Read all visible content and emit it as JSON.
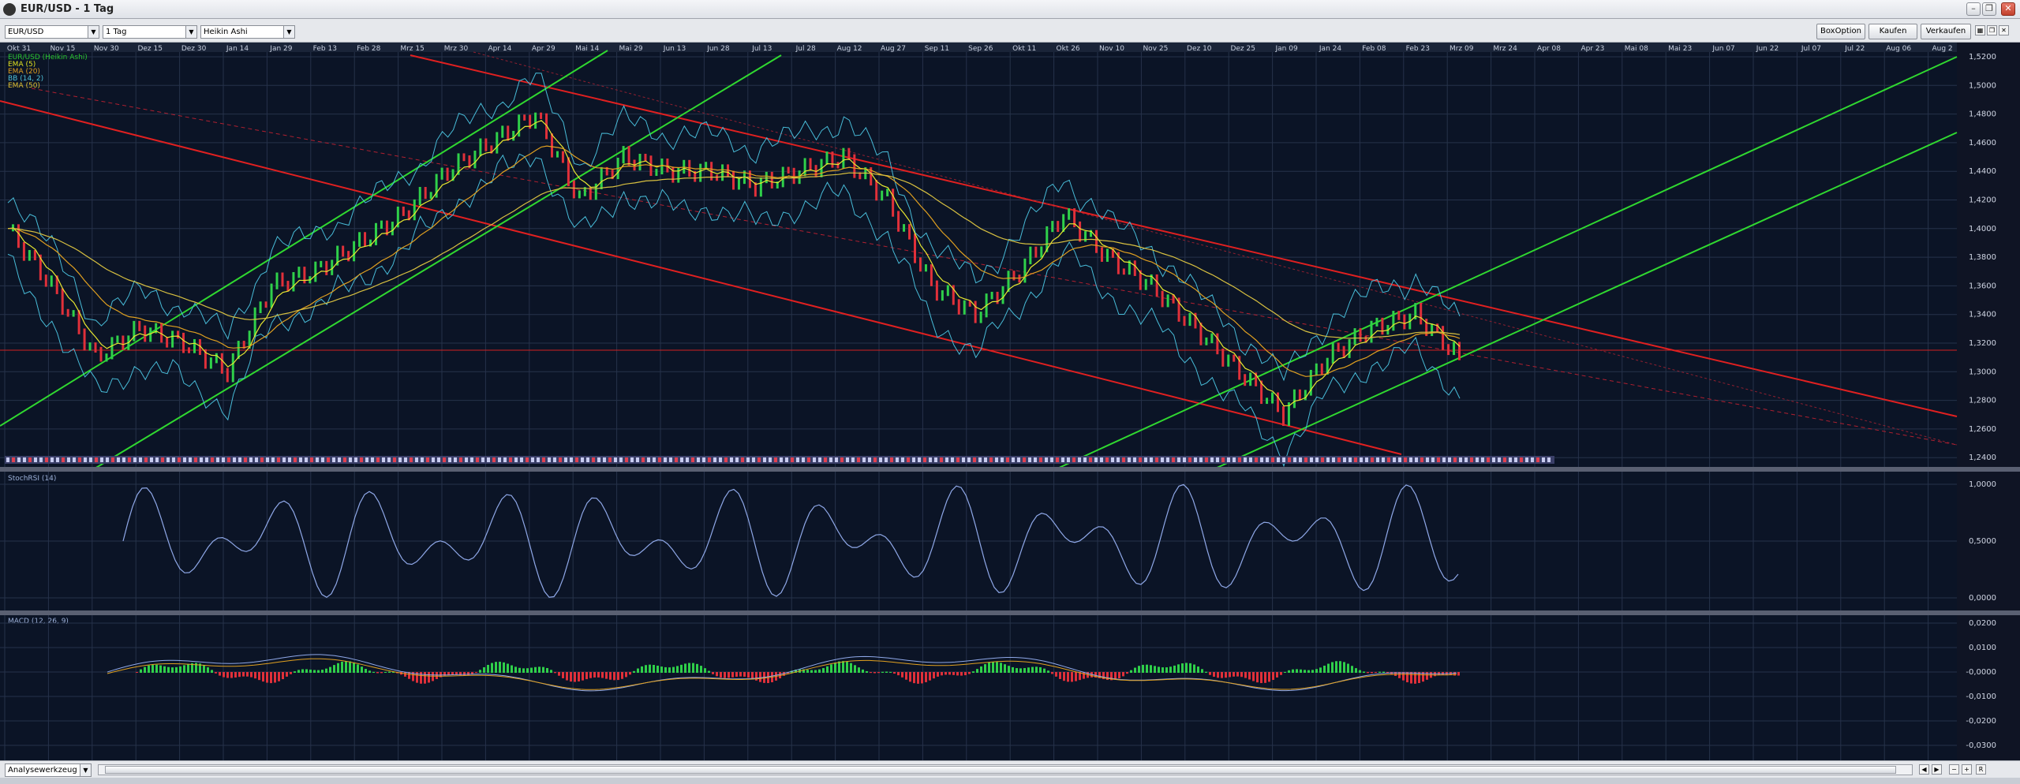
{
  "window": {
    "title": "EUR/USD - 1 Tag"
  },
  "toolbar": {
    "symbol": "EUR/USD",
    "interval": "1 Tag",
    "chart_type": "Heikin Ashi",
    "buttons": {
      "box_option": "BoxOption",
      "buy": "Kaufen",
      "sell": "Verkaufen"
    }
  },
  "chart": {
    "date_axis": [
      "Okt 31",
      "Nov 15",
      "Nov 30",
      "Dez 15",
      "Dez 30",
      "Jan 14",
      "Jan 29",
      "Feb 13",
      "Feb 28",
      "Mrz 15",
      "Mrz 30",
      "Apr 14",
      "Apr 29",
      "Mai 14",
      "Mai 29",
      "Jun 13",
      "Jun 28",
      "Jul 13",
      "Jul 28",
      "Aug 12",
      "Aug 27",
      "Sep 11",
      "Sep 26",
      "Okt 11",
      "Okt 26",
      "Nov 10",
      "Nov 25",
      "Dez 10",
      "Dez 25",
      "Jan 09",
      "Jan 24",
      "Feb 08",
      "Feb 23",
      "Mrz 09",
      "Mrz 24",
      "Apr 08",
      "Apr 23",
      "Mai 08",
      "Mai 23",
      "Jun 07",
      "Jun 22",
      "Jul 07",
      "Jul 22",
      "Aug 06",
      "Aug 2"
    ],
    "legend": [
      {
        "label": "EUR/USD (Heikin Ashi)",
        "color": "#29c42f"
      },
      {
        "label": "EMA (5)",
        "color": "#e0e020"
      },
      {
        "label": "EMA (20)",
        "color": "#e0a020"
      },
      {
        "label": "BB (14, 2)",
        "color": "#4fc0d8"
      },
      {
        "label": "EMA (50)",
        "color": "#e0c030"
      }
    ],
    "price_axis": [
      "1,5200",
      "1,5000",
      "1,4800",
      "1,4600",
      "1,4400",
      "1,4200",
      "1,4000",
      "1,3800",
      "1,3600",
      "1,3400",
      "1,3200",
      "1,3000",
      "1,2800",
      "1,2600",
      "1,2400"
    ],
    "stoch": {
      "label": "StochRSI (14)",
      "axis": [
        "1,0000",
        "0,5000",
        "0,0000"
      ]
    },
    "macd": {
      "label": "MACD (12, 26, 9)",
      "axis": [
        "0,0200",
        "0,0100",
        "-0,0000",
        "-0,0100",
        "-0,0200",
        "-0,0300"
      ]
    },
    "colors": {
      "background": "#0b1426",
      "grid": "#26324a",
      "up": "#2fd04a",
      "down": "#e0303a",
      "channel_red": "#e02020",
      "channel_green": "#30d830",
      "bollinger": "#48bcd8",
      "stoch_line": "#8fa8e8"
    }
  },
  "chart_data": {
    "type": "line",
    "series": [
      {
        "name": "EUR/USD (Heikin Ashi)",
        "x": [
          "Okt 31",
          "Nov 15",
          "Nov 30",
          "Dez 15",
          "Dez 30",
          "Jan 14",
          "Jan 29",
          "Feb 13",
          "Feb 28",
          "Mrz 15",
          "Mrz 30",
          "Apr 14",
          "Apr 29",
          "Mai 14",
          "Mai 29",
          "Jun 13",
          "Jun 28",
          "Jul 13",
          "Jul 28",
          "Aug 12",
          "Aug 27",
          "Sep 11",
          "Sep 26",
          "Okt 11",
          "Okt 26",
          "Nov 10",
          "Nov 25",
          "Dez 10",
          "Dez 25",
          "Jan 09",
          "Jan 24",
          "Feb 08",
          "Feb 23",
          "Mrz 09"
        ],
        "values": [
          1.4,
          1.36,
          1.31,
          1.33,
          1.32,
          1.3,
          1.36,
          1.37,
          1.39,
          1.41,
          1.44,
          1.46,
          1.48,
          1.42,
          1.45,
          1.44,
          1.44,
          1.43,
          1.44,
          1.45,
          1.42,
          1.36,
          1.34,
          1.37,
          1.41,
          1.38,
          1.36,
          1.33,
          1.3,
          1.27,
          1.31,
          1.33,
          1.34,
          1.31
        ]
      }
    ],
    "ylim": [
      1.24,
      1.52
    ]
  },
  "bottom": {
    "analysis_tool": "Analysewerkzeug"
  }
}
